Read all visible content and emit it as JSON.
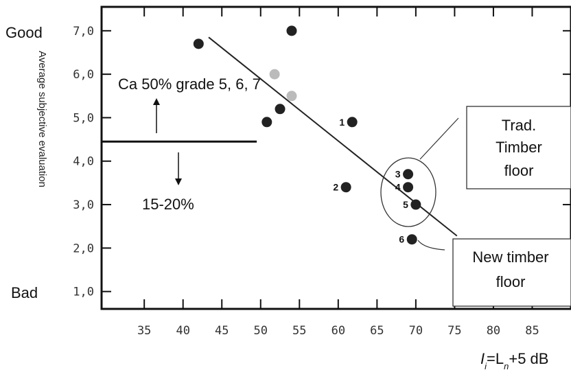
{
  "chart_data": {
    "type": "scatter",
    "title": "",
    "xlabel": "I_i=L_n+5 dB",
    "xlabel_parts": {
      "prefix": "I",
      "prefix_sub": "i",
      "mid": "=L",
      "mid_sub": "n",
      "suffix": "+5 dB"
    },
    "ylabel": "Average subjective evaluation",
    "xlim": [
      29.5,
      90
    ],
    "ylim": [
      0.6,
      7.55
    ],
    "x_ticks": [
      "35",
      "40",
      "45",
      "50",
      "55",
      "60",
      "65",
      "70",
      "75",
      "80",
      "85"
    ],
    "y_ticks": [
      "1,0",
      "2,0",
      "3,0",
      "4,0",
      "5,0",
      "6,0",
      "7,0"
    ],
    "y_ends": {
      "top": "Good",
      "bottom": "Bad"
    },
    "points": [
      {
        "x": 42,
        "y": 6.7,
        "label": "",
        "color": "#222222"
      },
      {
        "x": 54,
        "y": 7.0,
        "label": "",
        "color": "#222222"
      },
      {
        "x": 51.8,
        "y": 6.0,
        "label": "",
        "color": "#bbbbbb"
      },
      {
        "x": 54,
        "y": 5.5,
        "label": "",
        "color": "#bbbbbb"
      },
      {
        "x": 52.5,
        "y": 5.2,
        "label": "",
        "color": "#222222"
      },
      {
        "x": 50.8,
        "y": 4.9,
        "label": "",
        "color": "#222222"
      },
      {
        "x": 61.8,
        "y": 4.9,
        "label": "1",
        "color": "#222222"
      },
      {
        "x": 61,
        "y": 3.4,
        "label": "2",
        "color": "#222222"
      },
      {
        "x": 69,
        "y": 3.7,
        "label": "3",
        "color": "#222222"
      },
      {
        "x": 69,
        "y": 3.4,
        "label": "4",
        "color": "#222222"
      },
      {
        "x": 70,
        "y": 3.0,
        "label": "5",
        "color": "#222222"
      },
      {
        "x": 69.5,
        "y": 2.2,
        "label": "6",
        "color": "#222222"
      }
    ],
    "trend_line": {
      "x": [
        43.3,
        75.3
      ],
      "y": [
        6.85,
        2.28
      ]
    },
    "threshold_line": {
      "y": 4.45,
      "x": [
        29.5,
        49.5
      ]
    },
    "annotations": {
      "above": "Ca 50% grade 5, 6, 7",
      "below": "15-20%"
    },
    "legend_boxes": [
      {
        "lines": [
          "Trad.",
          "Timber",
          "floor"
        ]
      },
      {
        "lines": [
          "New timber",
          "floor"
        ]
      }
    ],
    "grid": false
  }
}
